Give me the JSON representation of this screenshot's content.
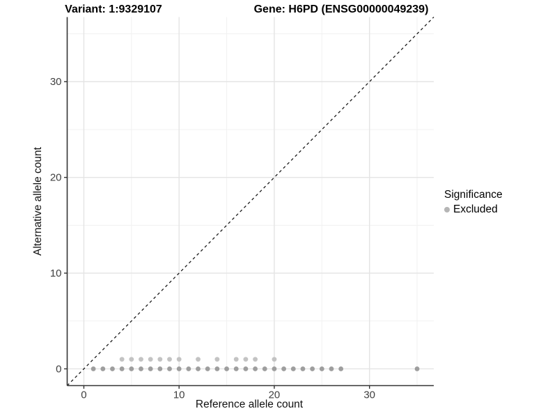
{
  "title": {
    "variant": "Variant: 1:9329107",
    "gene": "Gene: H6PD (ENSG00000049239)"
  },
  "axes": {
    "x": {
      "label": "Reference allele count"
    },
    "y": {
      "label": "Alternative allele count"
    }
  },
  "legend": {
    "title": "Significance",
    "items": [
      {
        "label": "Excluded",
        "color": "#b5b5b5"
      }
    ]
  },
  "colors": {
    "axis_line": "#333333",
    "tick_label": "#404040",
    "grid_major": "#e4e4e4",
    "grid_minor": "#f1f1f1",
    "identity_line": "#1a1a1a",
    "background": "#ffffff"
  },
  "chart_data": {
    "type": "scatter",
    "title": "Variant: 1:9329107   Gene: H6PD (ENSG00000049239)",
    "xlabel": "Reference allele count",
    "ylabel": "Alternative allele count",
    "xlim": [
      -1.75,
      36.75
    ],
    "ylim": [
      -1.75,
      36.75
    ],
    "x_ticks": {
      "major": [
        0,
        10,
        20,
        30
      ],
      "minor": [
        5,
        15,
        25,
        35
      ]
    },
    "y_ticks": {
      "major": [
        0,
        10,
        20,
        30
      ],
      "minor": [
        5,
        15,
        25,
        35
      ]
    },
    "grid": true,
    "legend_position": "right",
    "identity_line": {
      "equation": "y = x",
      "style": "dashed"
    },
    "point_radius_px": 3.4,
    "series": [
      {
        "name": "Excluded",
        "rows": [
          {
            "y": 0,
            "color": "#9e9e9e",
            "x": [
              1,
              2,
              3,
              4,
              5,
              6,
              7,
              8,
              9,
              10,
              11,
              12,
              13,
              14,
              15,
              16,
              17,
              18,
              19,
              20,
              21,
              22,
              23,
              24,
              25,
              26,
              27,
              35
            ]
          },
          {
            "y": 1,
            "color": "#c3c3c3",
            "x": [
              4,
              5,
              6,
              7,
              8,
              9,
              10,
              12,
              14,
              16,
              17,
              18,
              20
            ]
          }
        ]
      }
    ]
  }
}
